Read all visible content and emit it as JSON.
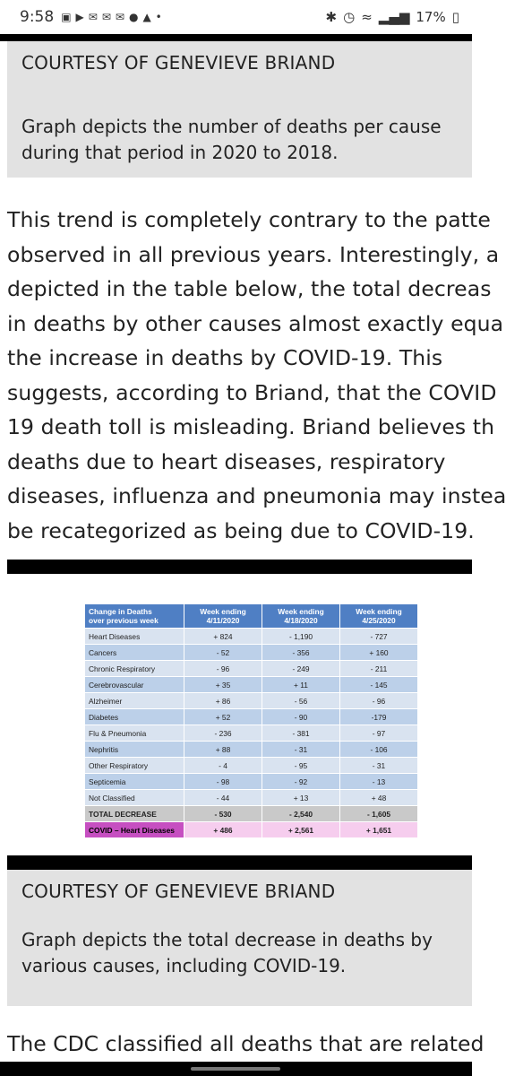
{
  "status_bar": {
    "time": "9:58",
    "battery": "17%",
    "left_icons": [
      "image-icon",
      "youtube-icon",
      "gmail-icon",
      "gmail-icon",
      "gmail-icon",
      "app-icon",
      "bell-icon",
      "more-dots-icon"
    ],
    "right_icons": [
      "bluetooth-icon",
      "alarm-icon",
      "wifi-icon",
      "signal-icon",
      "battery-icon"
    ]
  },
  "caption1": {
    "courtesy": "COURTESY OF GENEVIEVE BRIAND",
    "line1": "Graph depicts the number of deaths per cause",
    "line2": "during that period in 2020 to 2018."
  },
  "paragraph": {
    "lines": [
      "This trend is completely contrary to the patte",
      "observed in all previous years. Interestingly, a",
      "depicted in the table below, the total decreas",
      "in deaths by other causes almost exactly equa",
      "the increase in deaths by COVID-19. This",
      "suggests, according to Briand, that the COVID",
      "19 death toll is misleading. Briand believes th",
      "deaths due to heart diseases, respiratory",
      "diseases, influenza and pneumonia may instea",
      "be recategorized as being due to COVID-19."
    ]
  },
  "table": {
    "header": {
      "col0_line1": "Change in Deaths",
      "col0_line2": "over previous week",
      "col1_line1": "Week ending",
      "col1_line2": "4/11/2020",
      "col2_line1": "Week ending",
      "col2_line2": "4/18/2020",
      "col3_line1": "Week ending",
      "col3_line2": "4/25/2020"
    },
    "rows": [
      {
        "label": "Heart Diseases",
        "w1": "+ 824",
        "w2": "- 1,190",
        "w3": "- 727"
      },
      {
        "label": "Cancers",
        "w1": "- 52",
        "w2": "- 356",
        "w3": "+ 160"
      },
      {
        "label": "Chronic Respiratory",
        "w1": "- 96",
        "w2": "- 249",
        "w3": "- 211"
      },
      {
        "label": "Cerebrovascular",
        "w1": "+ 35",
        "w2": "+ 11",
        "w3": "- 145"
      },
      {
        "label": "Alzheimer",
        "w1": "+ 86",
        "w2": "- 56",
        "w3": "- 96"
      },
      {
        "label": "Diabetes",
        "w1": "+ 52",
        "w2": "- 90",
        "w3": "-179"
      },
      {
        "label": "Flu & Pneumonia",
        "w1": "- 236",
        "w2": "- 381",
        "w3": "- 97"
      },
      {
        "label": "Nephritis",
        "w1": "+ 88",
        "w2": "- 31",
        "w3": "- 106"
      },
      {
        "label": "Other Respiratory",
        "w1": "- 4",
        "w2": "- 95",
        "w3": "- 31"
      },
      {
        "label": "Septicemia",
        "w1": "- 98",
        "w2": "- 92",
        "w3": "- 13"
      },
      {
        "label": "Not Classified",
        "w1": "- 44",
        "w2": "+ 13",
        "w3": "+ 48"
      }
    ],
    "total": {
      "label": "TOTAL DECREASE",
      "w1": "- 530",
      "w2": "- 2,540",
      "w3": "- 1,605"
    },
    "covid": {
      "label": "COVID – Heart Diseases",
      "w1": "+ 486",
      "w2": "+ 2,561",
      "w3": "+ 1,651"
    }
  },
  "caption2": {
    "courtesy": "COURTESY OF GENEVIEVE BRIAND",
    "line1": "Graph depicts the total decrease in deaths by",
    "line2": "various causes, including COVID-19."
  },
  "bottom_text": "The CDC classified all deaths that are related"
}
